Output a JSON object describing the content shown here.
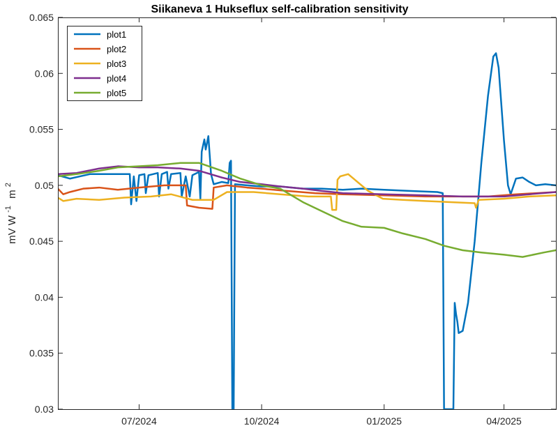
{
  "chart_data": {
    "type": "line",
    "title": "Siikaneva 1 Hukseflux self-calibration sensitivity",
    "xlabel": "",
    "ylabel": {
      "text": "mV W",
      "sup1": "-1",
      "text2": "m",
      "sup2": "2"
    },
    "xlim": [
      "2024-05-01",
      "2025-05-10"
    ],
    "ylim": [
      0.03,
      0.065
    ],
    "x_ticks": [
      {
        "date": "2024-07-01",
        "label": "07/2024"
      },
      {
        "date": "2024-10-01",
        "label": "10/2024"
      },
      {
        "date": "2025-01-01",
        "label": "01/2025"
      },
      {
        "date": "2025-04-01",
        "label": "04/2025"
      }
    ],
    "y_ticks": [
      {
        "value": 0.03,
        "label": "0.03"
      },
      {
        "value": 0.035,
        "label": "0.035"
      },
      {
        "value": 0.04,
        "label": "0.04"
      },
      {
        "value": 0.045,
        "label": "0.045"
      },
      {
        "value": 0.05,
        "label": "0.05"
      },
      {
        "value": 0.055,
        "label": "0.055"
      },
      {
        "value": 0.06,
        "label": "0.06"
      },
      {
        "value": 0.065,
        "label": "0.065"
      }
    ],
    "grid": false,
    "legend_position": "top-left",
    "series": [
      {
        "name": "plot1",
        "color": "#0072BD",
        "points": [
          [
            "2024-05-01",
            0.0509
          ],
          [
            "2024-05-10",
            0.0506
          ],
          [
            "2024-05-25",
            0.051
          ],
          [
            "2024-06-10",
            0.051
          ],
          [
            "2024-06-24",
            0.051
          ],
          [
            "2024-06-25",
            0.0483
          ],
          [
            "2024-06-27",
            0.0508
          ],
          [
            "2024-06-29",
            0.0486
          ],
          [
            "2024-07-01",
            0.0509
          ],
          [
            "2024-07-05",
            0.051
          ],
          [
            "2024-07-06",
            0.0493
          ],
          [
            "2024-07-08",
            0.0509
          ],
          [
            "2024-07-15",
            0.0511
          ],
          [
            "2024-07-16",
            0.049
          ],
          [
            "2024-07-18",
            0.051
          ],
          [
            "2024-07-22",
            0.0512
          ],
          [
            "2024-07-23",
            0.0497
          ],
          [
            "2024-07-25",
            0.051
          ],
          [
            "2024-08-01",
            0.0511
          ],
          [
            "2024-08-02",
            0.049
          ],
          [
            "2024-08-05",
            0.0508
          ],
          [
            "2024-08-08",
            0.049
          ],
          [
            "2024-08-10",
            0.0509
          ],
          [
            "2024-08-15",
            0.0512
          ],
          [
            "2024-08-16",
            0.0488
          ],
          [
            "2024-08-17",
            0.053
          ],
          [
            "2024-08-19",
            0.0541
          ],
          [
            "2024-08-20",
            0.0532
          ],
          [
            "2024-08-22",
            0.0544
          ],
          [
            "2024-08-24",
            0.051
          ],
          [
            "2024-08-26",
            0.0501
          ],
          [
            "2024-09-01",
            0.0503
          ],
          [
            "2024-09-06",
            0.0502
          ],
          [
            "2024-09-07",
            0.052
          ],
          [
            "2024-09-08",
            0.0522
          ],
          [
            "2024-09-09",
            0.03
          ],
          [
            "2024-09-10",
            0.03
          ],
          [
            "2024-09-11",
            0.0501
          ],
          [
            "2024-09-20",
            0.05
          ],
          [
            "2024-10-01",
            0.0499
          ],
          [
            "2024-10-15",
            0.0499
          ],
          [
            "2024-11-01",
            0.0497
          ],
          [
            "2024-11-15",
            0.0497
          ],
          [
            "2024-12-01",
            0.0496
          ],
          [
            "2024-12-15",
            0.0497
          ],
          [
            "2025-01-01",
            0.0496
          ],
          [
            "2025-01-20",
            0.0495
          ],
          [
            "2025-02-10",
            0.0494
          ],
          [
            "2025-02-14",
            0.0493
          ],
          [
            "2025-02-15",
            0.03
          ],
          [
            "2025-02-22",
            0.03
          ],
          [
            "2025-02-23",
            0.0395
          ],
          [
            "2025-02-24",
            0.0385
          ],
          [
            "2025-02-25",
            0.0378
          ],
          [
            "2025-02-26",
            0.0368
          ],
          [
            "2025-03-01",
            0.037
          ],
          [
            "2025-03-05",
            0.0395
          ],
          [
            "2025-03-10",
            0.045
          ],
          [
            "2025-03-15",
            0.052
          ],
          [
            "2025-03-20",
            0.058
          ],
          [
            "2025-03-24",
            0.0615
          ],
          [
            "2025-03-26",
            0.0618
          ],
          [
            "2025-03-28",
            0.0605
          ],
          [
            "2025-04-01",
            0.054
          ],
          [
            "2025-04-04",
            0.05
          ],
          [
            "2025-04-06",
            0.0492
          ],
          [
            "2025-04-10",
            0.0506
          ],
          [
            "2025-04-15",
            0.0507
          ],
          [
            "2025-04-20",
            0.0503
          ],
          [
            "2025-04-25",
            0.05
          ],
          [
            "2025-05-02",
            0.0501
          ],
          [
            "2025-05-10",
            0.05
          ]
        ]
      },
      {
        "name": "plot2",
        "color": "#D95319",
        "points": [
          [
            "2024-05-01",
            0.0497
          ],
          [
            "2024-05-05",
            0.0492
          ],
          [
            "2024-05-10",
            0.0494
          ],
          [
            "2024-05-20",
            0.0497
          ],
          [
            "2024-06-01",
            0.0498
          ],
          [
            "2024-06-15",
            0.0496
          ],
          [
            "2024-07-01",
            0.0498
          ],
          [
            "2024-07-20",
            0.05
          ],
          [
            "2024-08-05",
            0.05
          ],
          [
            "2024-08-06",
            0.0482
          ],
          [
            "2024-08-15",
            0.048
          ],
          [
            "2024-08-25",
            0.0479
          ],
          [
            "2024-08-26",
            0.0498
          ],
          [
            "2024-09-05",
            0.05
          ],
          [
            "2024-09-20",
            0.0498
          ],
          [
            "2024-10-01",
            0.0497
          ],
          [
            "2024-10-20",
            0.0495
          ],
          [
            "2024-11-10",
            0.0493
          ],
          [
            "2024-12-01",
            0.0492
          ],
          [
            "2025-01-01",
            0.0491
          ],
          [
            "2025-02-01",
            0.049
          ],
          [
            "2025-03-01",
            0.049
          ],
          [
            "2025-03-20",
            0.049
          ],
          [
            "2025-04-10",
            0.0492
          ],
          [
            "2025-05-10",
            0.0494
          ]
        ]
      },
      {
        "name": "plot3",
        "color": "#EDB120",
        "points": [
          [
            "2024-05-01",
            0.0489
          ],
          [
            "2024-05-05",
            0.0486
          ],
          [
            "2024-05-15",
            0.0488
          ],
          [
            "2024-06-01",
            0.0487
          ],
          [
            "2024-06-20",
            0.0489
          ],
          [
            "2024-07-10",
            0.049
          ],
          [
            "2024-07-25",
            0.0492
          ],
          [
            "2024-08-10",
            0.0487
          ],
          [
            "2024-08-26",
            0.0487
          ],
          [
            "2024-09-05",
            0.0494
          ],
          [
            "2024-09-25",
            0.0494
          ],
          [
            "2024-10-15",
            0.0492
          ],
          [
            "2024-11-05",
            0.049
          ],
          [
            "2024-11-22",
            0.049
          ],
          [
            "2024-11-23",
            0.0478
          ],
          [
            "2024-11-26",
            0.0478
          ],
          [
            "2024-11-27",
            0.0505
          ],
          [
            "2024-11-29",
            0.0508
          ],
          [
            "2024-12-05",
            0.051
          ],
          [
            "2024-12-10",
            0.0505
          ],
          [
            "2024-12-20",
            0.0495
          ],
          [
            "2024-12-31",
            0.0488
          ],
          [
            "2025-01-15",
            0.0487
          ],
          [
            "2025-02-01",
            0.0486
          ],
          [
            "2025-02-20",
            0.0485
          ],
          [
            "2025-03-10",
            0.0484
          ],
          [
            "2025-03-11",
            0.048
          ],
          [
            "2025-03-13",
            0.0487
          ],
          [
            "2025-04-01",
            0.0488
          ],
          [
            "2025-04-20",
            0.049
          ],
          [
            "2025-05-10",
            0.0491
          ]
        ]
      },
      {
        "name": "plot4",
        "color": "#7E2F8E",
        "points": [
          [
            "2024-05-01",
            0.051
          ],
          [
            "2024-05-15",
            0.0511
          ],
          [
            "2024-06-01",
            0.0515
          ],
          [
            "2024-06-15",
            0.0517
          ],
          [
            "2024-07-01",
            0.0516
          ],
          [
            "2024-07-15",
            0.0516
          ],
          [
            "2024-08-01",
            0.0515
          ],
          [
            "2024-08-15",
            0.0513
          ],
          [
            "2024-09-01",
            0.0507
          ],
          [
            "2024-09-15",
            0.0503
          ],
          [
            "2024-10-01",
            0.0501
          ],
          [
            "2024-10-15",
            0.0499
          ],
          [
            "2024-11-01",
            0.0497
          ],
          [
            "2024-11-15",
            0.0495
          ],
          [
            "2024-12-01",
            0.0493
          ],
          [
            "2025-01-01",
            0.0492
          ],
          [
            "2025-02-01",
            0.0491
          ],
          [
            "2025-03-01",
            0.049
          ],
          [
            "2025-04-01",
            0.049
          ],
          [
            "2025-04-20",
            0.0492
          ],
          [
            "2025-05-10",
            0.0494
          ]
        ]
      },
      {
        "name": "plot5",
        "color": "#77AC30",
        "points": [
          [
            "2024-05-01",
            0.0508
          ],
          [
            "2024-05-15",
            0.051
          ],
          [
            "2024-06-01",
            0.0513
          ],
          [
            "2024-06-15",
            0.0516
          ],
          [
            "2024-07-01",
            0.0517
          ],
          [
            "2024-07-15",
            0.0518
          ],
          [
            "2024-08-01",
            0.052
          ],
          [
            "2024-08-15",
            0.052
          ],
          [
            "2024-09-01",
            0.0513
          ],
          [
            "2024-09-15",
            0.0506
          ],
          [
            "2024-10-01",
            0.05
          ],
          [
            "2024-10-15",
            0.0497
          ],
          [
            "2024-11-01",
            0.0485
          ],
          [
            "2024-11-15",
            0.0477
          ],
          [
            "2024-12-01",
            0.0468
          ],
          [
            "2024-12-15",
            0.0463
          ],
          [
            "2025-01-01",
            0.0462
          ],
          [
            "2025-01-15",
            0.0457
          ],
          [
            "2025-02-01",
            0.0452
          ],
          [
            "2025-02-15",
            0.0446
          ],
          [
            "2025-03-01",
            0.0442
          ],
          [
            "2025-03-15",
            0.044
          ],
          [
            "2025-04-01",
            0.0438
          ],
          [
            "2025-04-15",
            0.0436
          ],
          [
            "2025-05-01",
            0.044
          ],
          [
            "2025-05-10",
            0.0442
          ]
        ]
      }
    ]
  }
}
